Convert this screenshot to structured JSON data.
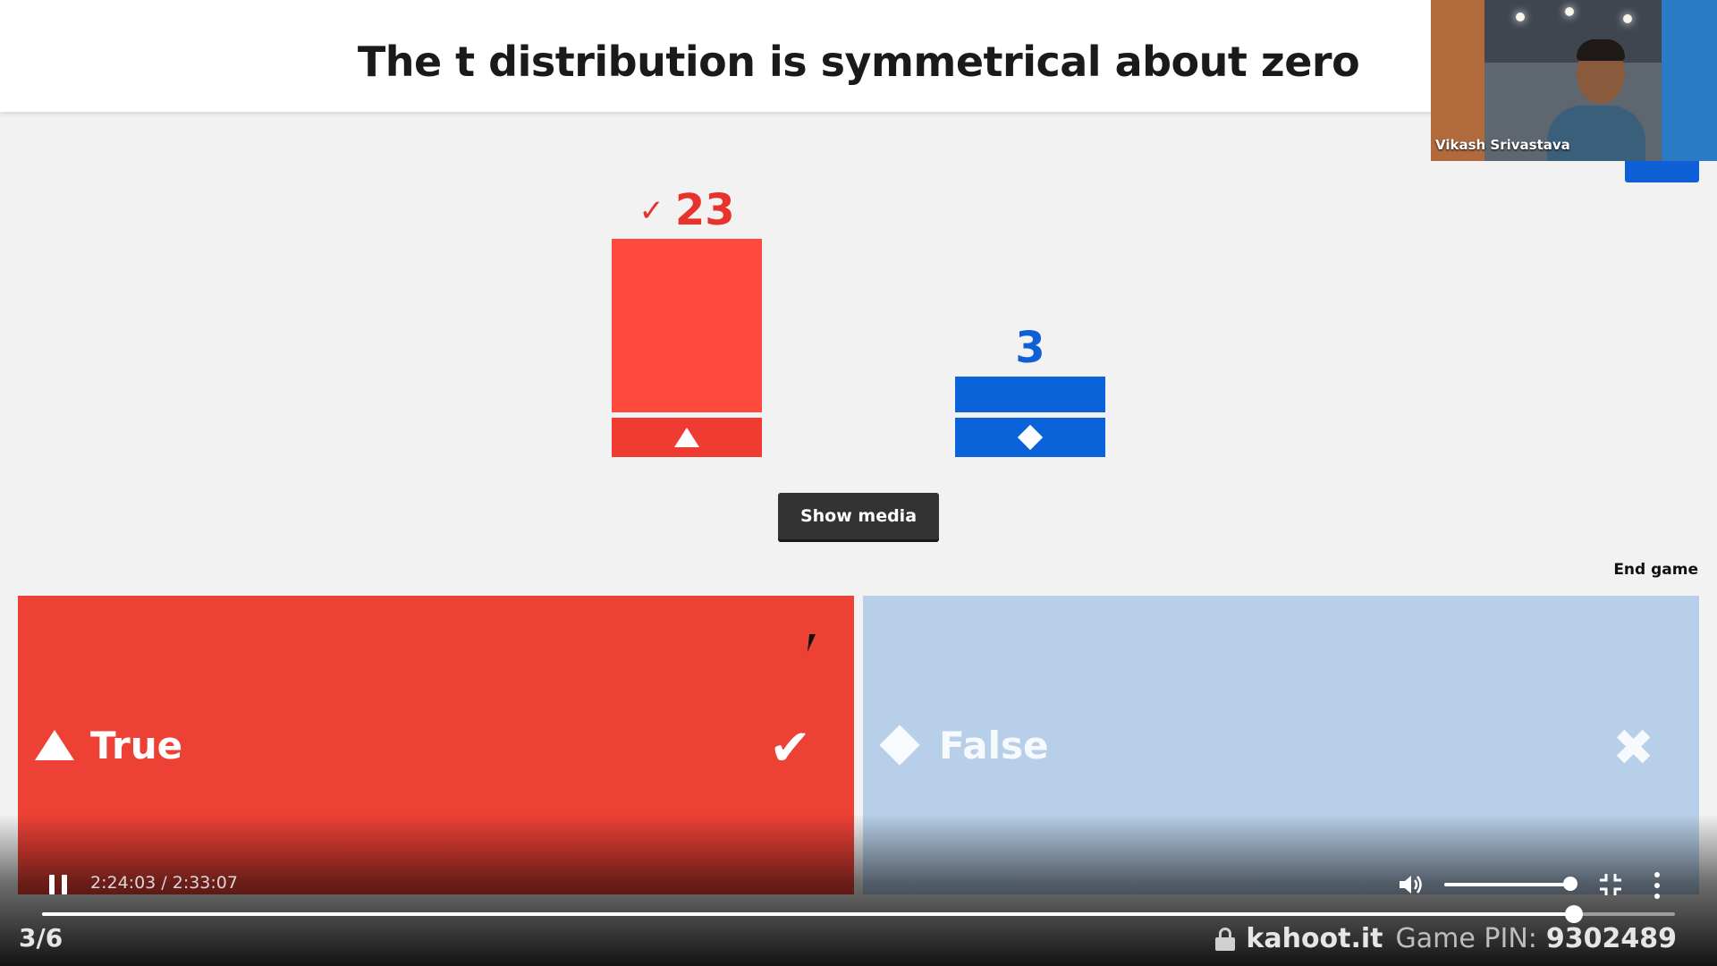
{
  "question": {
    "title": "The t distribution is symmetrical about zero"
  },
  "webcam": {
    "name": "Vikash Srivastava"
  },
  "results": {
    "true_count": "23",
    "false_count": "3",
    "check_symbol": "✓"
  },
  "chart_data": {
    "type": "bar",
    "categories": [
      "True",
      "False"
    ],
    "values": [
      23,
      3
    ],
    "colors": [
      "#ff4a3f",
      "#0b63d9"
    ]
  },
  "buttons": {
    "show_media": "Show media",
    "end_game": "End game"
  },
  "answers": [
    {
      "label": "True",
      "shape": "triangle-icon",
      "correct": true,
      "mark": "✔"
    },
    {
      "label": "False",
      "shape": "diamond-icon",
      "correct": false,
      "mark": "✖"
    }
  ],
  "player": {
    "time": "2:24:03 / 2:33:07",
    "progress": 0.9379
  },
  "footer": {
    "counter": "3/6",
    "site": "kahoot.it",
    "pin_label": "Game PIN:",
    "pin": "9302489"
  }
}
